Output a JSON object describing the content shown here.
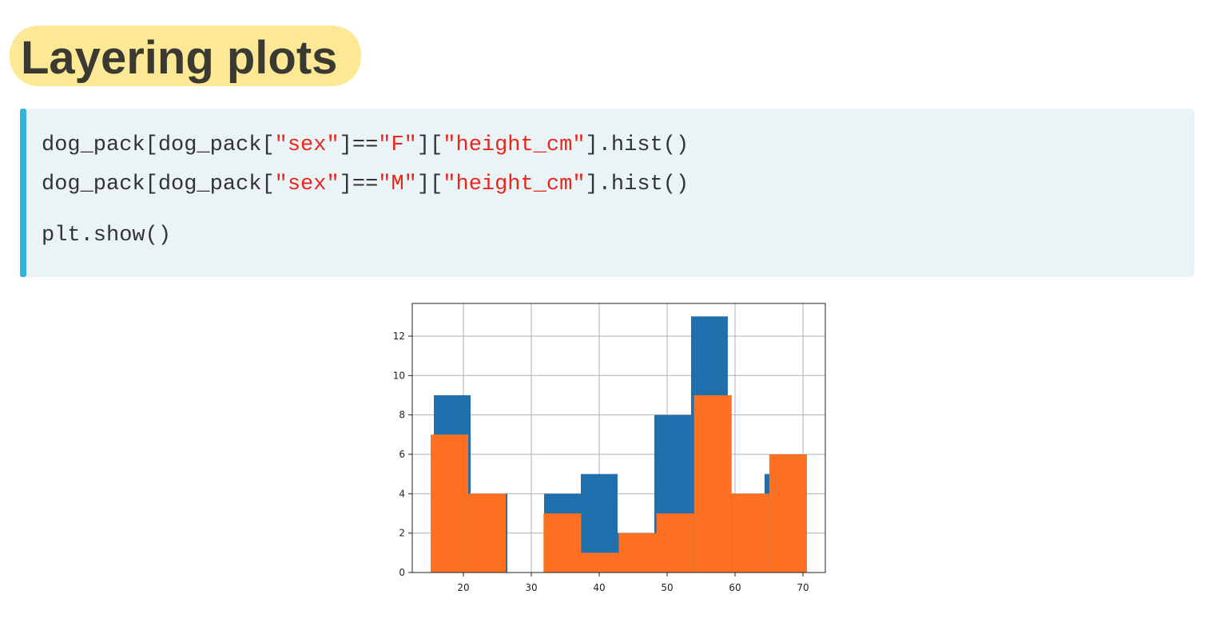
{
  "header": {
    "title": "Layering plots"
  },
  "code": {
    "lines": [
      [
        "dog_pack[dog_pack[",
        "\"sex\"",
        "]==",
        "\"F\"",
        "][",
        "\"height_cm\"",
        "].hist()"
      ],
      [
        "dog_pack[dog_pack[",
        "\"sex\"",
        "]==",
        "\"M\"",
        "][",
        "\"height_cm\"",
        "].hist()"
      ],
      [
        "plt.show()"
      ]
    ]
  },
  "chart_data": {
    "type": "histogram",
    "grid": true,
    "xlim": [
      12.47,
      73.29
    ],
    "ylim": [
      0,
      13.66
    ],
    "xticks": [
      20,
      30,
      40,
      50,
      60,
      70
    ],
    "yticks": [
      0,
      2,
      4,
      6,
      8,
      10,
      12
    ],
    "series": [
      {
        "color": "#1f6fad",
        "bins": [
          15.65,
          21.06,
          26.47,
          31.88,
          37.29,
          42.7,
          48.11,
          53.52,
          58.93,
          64.34,
          69.75
        ],
        "values": [
          9,
          4,
          0,
          4,
          5,
          2,
          8,
          13,
          4,
          5
        ]
      },
      {
        "color": "#fd7022",
        "bins": [
          15.18,
          20.72,
          26.26,
          31.8,
          37.34,
          42.88,
          48.42,
          53.96,
          59.5,
          65.04,
          70.58
        ],
        "values": [
          7,
          4,
          0,
          3,
          1,
          2,
          3,
          9,
          4,
          6
        ]
      }
    ]
  }
}
